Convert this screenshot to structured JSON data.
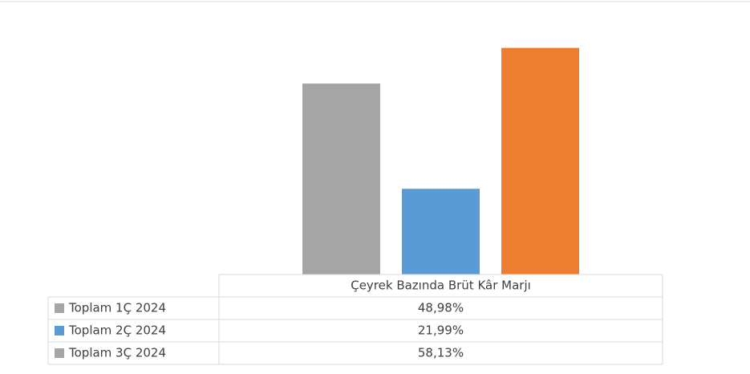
{
  "chart_data": {
    "type": "bar",
    "categories": [
      "Çeyrek Bazında Brüt Kâr Marjı"
    ],
    "series": [
      {
        "name": "Toplam 1Ç 2024",
        "color": "#a5a5a5",
        "key_color": "#a5a5a5",
        "values": [
          48.98
        ],
        "value_labels": [
          "48,98%"
        ]
      },
      {
        "name": "Toplam 2Ç 2024",
        "color": "#5b9bd5",
        "key_color": "#5b9bd5",
        "values": [
          21.99
        ],
        "value_labels": [
          "21,99%"
        ]
      },
      {
        "name": "Toplam 3Ç 2024",
        "color": "#ed7d31",
        "key_color": "#a5a5a5",
        "values": [
          58.13
        ],
        "value_labels": [
          "58,13%"
        ]
      }
    ],
    "ylim": [
      0,
      70
    ],
    "data_table": true
  }
}
